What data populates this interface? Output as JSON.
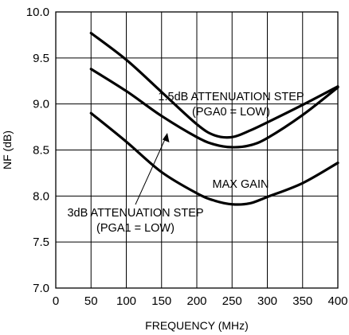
{
  "chart_data": {
    "type": "line",
    "title": "",
    "xlabel": "FREQUENCY (MHz)",
    "ylabel": "NF (dB)",
    "xlim": [
      0,
      400
    ],
    "ylim": [
      7.0,
      10.0
    ],
    "grid": true,
    "x_ticks": [
      "0",
      "50",
      "100",
      "150",
      "200",
      "250",
      "300",
      "350",
      "400"
    ],
    "y_ticks": [
      "7.0",
      "7.5",
      "8.0",
      "8.5",
      "9.0",
      "9.5",
      "10.0"
    ],
    "series": [
      {
        "name": "1.5dB ATTENUATION STEP (PGA0 = LOW)",
        "x": [
          50,
          100,
          150,
          200,
          225,
          250,
          275,
          300,
          350,
          400
        ],
        "y": [
          9.77,
          9.48,
          9.13,
          8.78,
          8.66,
          8.64,
          8.71,
          8.8,
          8.99,
          9.19
        ]
      },
      {
        "name": "3dB ATTENUATION STEP (PGA1 = LOW)",
        "x": [
          50,
          100,
          150,
          200,
          225,
          250,
          275,
          300,
          350,
          400
        ],
        "y": [
          9.38,
          9.14,
          8.87,
          8.64,
          8.56,
          8.53,
          8.55,
          8.63,
          8.88,
          9.18
        ]
      },
      {
        "name": "MAX GAIN",
        "x": [
          50,
          100,
          150,
          200,
          225,
          250,
          275,
          300,
          350,
          400
        ],
        "y": [
          8.9,
          8.59,
          8.26,
          8.03,
          7.95,
          7.91,
          7.92,
          7.99,
          8.14,
          8.36
        ]
      }
    ],
    "annotations": [
      {
        "text_lines": [
          "1.5dB ATTENUATION STEP",
          "(PGA0 = LOW)"
        ]
      },
      {
        "text_lines": [
          "MAX GAIN"
        ]
      },
      {
        "text_lines": [
          "3dB ATTENUATION STEP",
          "(PGA1 = LOW)"
        ]
      }
    ]
  }
}
